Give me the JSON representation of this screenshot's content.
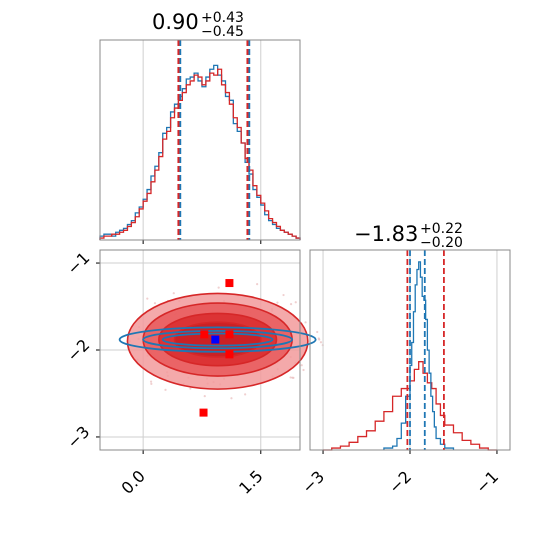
{
  "chart_data": [
    {
      "type": "histogram",
      "panel": "marginal-1",
      "title": {
        "median": "0.90",
        "plus": "+0.43",
        "minus": "−0.45"
      },
      "xlim": [
        -0.55,
        2.0
      ],
      "quantiles": {
        "red": [
          0.45,
          1.33
        ],
        "blue": [
          0.46,
          1.34
        ]
      },
      "bins": [
        -0.55,
        -0.5,
        -0.45,
        -0.4,
        -0.35,
        -0.3,
        -0.25,
        -0.2,
        -0.15,
        -0.1,
        -0.05,
        0.0,
        0.05,
        0.1,
        0.15,
        0.2,
        0.25,
        0.3,
        0.35,
        0.4,
        0.45,
        0.5,
        0.55,
        0.6,
        0.65,
        0.7,
        0.75,
        0.8,
        0.85,
        0.9,
        0.95,
        1.0,
        1.05,
        1.1,
        1.15,
        1.2,
        1.25,
        1.3,
        1.35,
        1.4,
        1.45,
        1.5,
        1.55,
        1.6,
        1.65,
        1.7,
        1.75,
        1.8,
        1.85,
        1.9,
        1.95,
        2.0
      ],
      "series": [
        {
          "color": "#1f77b4",
          "values": [
            0.02,
            0.03,
            0.03,
            0.02,
            0.04,
            0.05,
            0.06,
            0.08,
            0.1,
            0.14,
            0.17,
            0.21,
            0.26,
            0.33,
            0.38,
            0.45,
            0.55,
            0.58,
            0.66,
            0.7,
            0.74,
            0.78,
            0.83,
            0.84,
            0.86,
            0.82,
            0.79,
            0.84,
            0.88,
            0.9,
            0.85,
            0.82,
            0.74,
            0.72,
            0.6,
            0.56,
            0.5,
            0.4,
            0.34,
            0.26,
            0.22,
            0.18,
            0.13,
            0.1,
            0.08,
            0.06,
            0.05,
            0.04,
            0.03,
            0.02,
            0.01
          ]
        },
        {
          "color": "#d62728",
          "values": [
            0.01,
            0.02,
            0.02,
            0.03,
            0.03,
            0.04,
            0.05,
            0.07,
            0.09,
            0.12,
            0.16,
            0.2,
            0.24,
            0.3,
            0.36,
            0.43,
            0.52,
            0.56,
            0.63,
            0.68,
            0.72,
            0.76,
            0.8,
            0.82,
            0.85,
            0.84,
            0.8,
            0.82,
            0.86,
            0.85,
            0.88,
            0.8,
            0.76,
            0.7,
            0.63,
            0.58,
            0.5,
            0.42,
            0.36,
            0.28,
            0.23,
            0.19,
            0.15,
            0.11,
            0.09,
            0.07,
            0.05,
            0.04,
            0.03,
            0.02,
            0.01
          ]
        }
      ],
      "xticks": [
        0.0,
        1.5
      ]
    },
    {
      "type": "contour",
      "panel": "joint",
      "xlim": [
        -0.55,
        2.0
      ],
      "ylim": [
        -3.15,
        -0.85
      ],
      "xticks": [
        0.0,
        1.5
      ],
      "xtick_labels": [
        "0.0",
        "1.5"
      ],
      "yticks": [
        -1,
        -2,
        -3
      ],
      "ytick_labels": [
        "−1",
        "−2",
        "−3"
      ],
      "red_contours": [
        {
          "cx": 0.95,
          "cy": -1.9,
          "rx": 1.15,
          "ry": 0.55
        },
        {
          "cx": 0.95,
          "cy": -1.88,
          "rx": 0.95,
          "ry": 0.42
        },
        {
          "cx": 0.95,
          "cy": -1.88,
          "rx": 0.75,
          "ry": 0.3
        },
        {
          "cx": 0.95,
          "cy": -1.88,
          "rx": 0.55,
          "ry": 0.2
        }
      ],
      "blue_contours": [
        {
          "cx": 0.95,
          "cy": -1.88,
          "rx": 1.25,
          "ry": 0.14
        },
        {
          "cx": 0.95,
          "cy": -1.88,
          "rx": 0.95,
          "ry": 0.1
        },
        {
          "cx": 0.95,
          "cy": -1.88,
          "rx": 0.7,
          "ry": 0.07
        }
      ],
      "red_markers": [
        {
          "x": 1.1,
          "y": -1.23
        },
        {
          "x": 0.78,
          "y": -1.82
        },
        {
          "x": 1.1,
          "y": -1.82
        },
        {
          "x": 1.1,
          "y": -2.05
        },
        {
          "x": 0.77,
          "y": -2.72
        }
      ],
      "blue_markers": [
        {
          "x": 0.92,
          "y": -1.88
        }
      ]
    },
    {
      "type": "histogram",
      "panel": "marginal-2",
      "title": {
        "median": "−1.83",
        "plus": "+0.22",
        "minus": "−0.20"
      },
      "xlim": [
        -3.15,
        -0.85
      ],
      "quantiles": {
        "red": [
          -2.03,
          -1.61
        ],
        "blue": [
          -2.0,
          -1.83
        ]
      },
      "xticks": [
        -3,
        -2,
        -1
      ],
      "xtick_labels": [
        "−3",
        "−2",
        "−1"
      ],
      "red_series": {
        "color": "#d62728",
        "bins": [
          -3.0,
          -2.9,
          -2.8,
          -2.7,
          -2.6,
          -2.5,
          -2.4,
          -2.3,
          -2.2,
          -2.1,
          -2.0,
          -1.95,
          -1.9,
          -1.85,
          -1.8,
          -1.75,
          -1.7,
          -1.65,
          -1.6,
          -1.5,
          -1.4,
          -1.3,
          -1.2,
          -1.1,
          -1.0
        ],
        "values": [
          0.0,
          0.01,
          0.02,
          0.04,
          0.07,
          0.1,
          0.15,
          0.2,
          0.28,
          0.32,
          0.36,
          0.42,
          0.46,
          0.4,
          0.35,
          0.32,
          0.24,
          0.18,
          0.13,
          0.09,
          0.05,
          0.03,
          0.01,
          0.0
        ]
      },
      "blue_series": {
        "color": "#1f77b4",
        "bins": [
          -2.3,
          -2.2,
          -2.15,
          -2.1,
          -2.05,
          -2.0,
          -1.98,
          -1.96,
          -1.94,
          -1.92,
          -1.9,
          -1.88,
          -1.86,
          -1.84,
          -1.82,
          -1.8,
          -1.78,
          -1.76,
          -1.74,
          -1.72,
          -1.7,
          -1.65,
          -1.6,
          -1.5
        ],
        "values": [
          0.01,
          0.02,
          0.06,
          0.14,
          0.28,
          0.44,
          0.56,
          0.72,
          0.86,
          0.94,
          0.98,
          0.9,
          0.8,
          0.78,
          0.68,
          0.52,
          0.4,
          0.28,
          0.2,
          0.12,
          0.06,
          0.03,
          0.01
        ]
      }
    }
  ],
  "colors": {
    "red": "#d62728",
    "blue": "#1f77b4",
    "red_fill_light": "#f29a9b",
    "red_fill_mid": "#e8585a",
    "red_fill_dark": "#d92a2d",
    "grid": "#cfcfcf"
  }
}
